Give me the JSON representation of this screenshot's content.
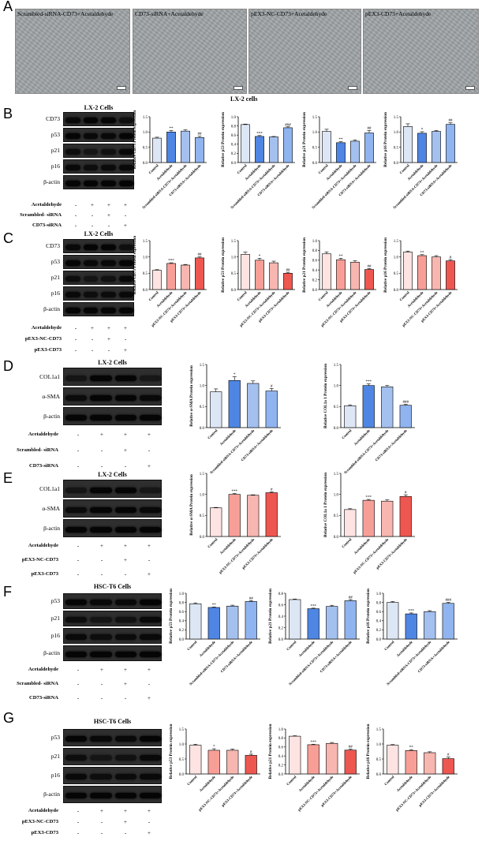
{
  "panel_A": {
    "letter": "A",
    "images": [
      "Scrambled-siRNA-CD73+Acetaldehyde",
      "CD73-siRNA+Acetaldehyde",
      "pEX3-NC-CD73+Acetaldehyde",
      "pEX3-CD73+Acetaldehyde"
    ],
    "footer": "LX-2 cells"
  },
  "panels": [
    {
      "letter": "B",
      "cells": "LX-2 Cells",
      "blot_rows": [
        "CD73",
        "p53",
        "p21",
        "p16",
        "β-actin"
      ],
      "treatments": [
        {
          "label": "Acetaldehyde",
          "signs": [
            "-",
            "+",
            "+",
            "+"
          ]
        },
        {
          "label": "Scrambled- siRNA",
          "signs": [
            "-",
            "-",
            "+",
            "-"
          ]
        },
        {
          "label": "CD73-siRNA",
          "signs": [
            "-",
            "-",
            "-",
            "+"
          ]
        }
      ]
    },
    {
      "letter": "C",
      "cells": "LX-2 Cells",
      "blot_rows": [
        "CD73",
        "p53",
        "p21",
        "p16",
        "β-actin"
      ],
      "treatments": [
        {
          "label": "Acetaldehyde",
          "signs": [
            "-",
            "+",
            "+",
            "+"
          ]
        },
        {
          "label": "pEX3-NC-CD73",
          "signs": [
            "-",
            "-",
            "+",
            "-"
          ]
        },
        {
          "label": "pEX3-CD73",
          "signs": [
            "-",
            "-",
            "-",
            "+"
          ]
        }
      ]
    },
    {
      "letter": "D",
      "cells": "LX-2 Cells",
      "blot_rows": [
        "COL1a1",
        "α-SMA",
        "β-actin"
      ],
      "treatments": [
        {
          "label": "Acetaldehyde",
          "signs": [
            "-",
            "+",
            "+",
            "+"
          ]
        },
        {
          "label": "Scrambled- siRNA",
          "signs": [
            "-",
            "-",
            "+",
            "-"
          ]
        },
        {
          "label": "CD73-siRNA",
          "signs": [
            "-",
            "-",
            "-",
            "+"
          ]
        }
      ]
    },
    {
      "letter": "E",
      "cells": "LX-2 Cells",
      "blot_rows": [
        "COL1a1",
        "α-SMA",
        "β-actin"
      ],
      "treatments": [
        {
          "label": "Acetaldehyde",
          "signs": [
            "-",
            "+",
            "+",
            "+"
          ]
        },
        {
          "label": "pEX3-NC-CD73",
          "signs": [
            "-",
            "-",
            "+",
            "-"
          ]
        },
        {
          "label": "pEX3-CD73",
          "signs": [
            "-",
            "-",
            "-",
            "+"
          ]
        }
      ]
    },
    {
      "letter": "F",
      "cells": "HSC-T6 Cells",
      "blot_rows": [
        "p53",
        "p21",
        "p16",
        "β-actin"
      ],
      "treatments": [
        {
          "label": "Acetaldehyde",
          "signs": [
            "-",
            "+",
            "+",
            "+"
          ]
        },
        {
          "label": "Scrambled- siRNA",
          "signs": [
            "-",
            "-",
            "+",
            "-"
          ]
        },
        {
          "label": "CD73-siRNA",
          "signs": [
            "-",
            "-",
            "-",
            "+"
          ]
        }
      ]
    },
    {
      "letter": "G",
      "cells": "HSC-T6 Cells",
      "blot_rows": [
        "p53",
        "p21",
        "p16",
        "β-actin"
      ],
      "treatments": [
        {
          "label": "Acetaldehyde",
          "signs": [
            "-",
            "+",
            "+",
            "+"
          ]
        },
        {
          "label": "pEX3-NC-CD73",
          "signs": [
            "-",
            "-",
            "+",
            "-"
          ]
        },
        {
          "label": "pEX3-CD73",
          "signs": [
            "-",
            "-",
            "-",
            "+"
          ]
        }
      ]
    }
  ],
  "colors": {
    "siRNA_bars": [
      "#dce6f4",
      "#4f86e3",
      "#a4c0ee",
      "#8fb4ef"
    ],
    "overexp_bars": [
      "#fde3e1",
      "#f79f97",
      "#f7b6b0",
      "#ee5750"
    ]
  },
  "chart_data": [
    {
      "id": "B1",
      "type": "bar",
      "ylabel": "Relative CD73 Protein expression",
      "categories": [
        "Control",
        "Acetaldehyde",
        "Scrambled-siRNA-CD73+Acetaldehyde",
        "CD73-siRNA+Acetaldehyde"
      ],
      "values": [
        0.8,
        1.0,
        1.03,
        0.82
      ],
      "errors": [
        0.03,
        0.05,
        0.04,
        0.04
      ],
      "sig": [
        "",
        "**",
        "",
        "##"
      ],
      "ylim": [
        0,
        1.5
      ],
      "yticks": [
        0,
        0.5,
        1.0,
        1.5
      ],
      "palette": "siRNA"
    },
    {
      "id": "B2",
      "type": "bar",
      "ylabel": "Relative p53 Protein expression",
      "categories": [
        "Control",
        "Acetaldehyde",
        "Scrambled-siRNA-CD73+Acetaldehyde",
        "CD73-siRNA+Acetaldehyde"
      ],
      "values": [
        0.83,
        0.57,
        0.56,
        0.76
      ],
      "errors": [
        0.01,
        0.02,
        0.01,
        0.02
      ],
      "sig": [
        "",
        "***",
        "",
        "###"
      ],
      "ylim": [
        0,
        1.0
      ],
      "yticks": [
        0,
        0.2,
        0.4,
        0.6,
        0.8,
        1.0
      ],
      "palette": "siRNA"
    },
    {
      "id": "B3",
      "type": "bar",
      "ylabel": "Relative p21 Protein expression",
      "categories": [
        "Control",
        "Acetaldehyde",
        "Scrambled-siRNA-CD73+Acetaldehyde",
        "CD73-siRNA+Acetaldehyde"
      ],
      "values": [
        1.02,
        0.65,
        0.7,
        0.97
      ],
      "errors": [
        0.07,
        0.03,
        0.04,
        0.08
      ],
      "sig": [
        "",
        "**",
        "",
        "##"
      ],
      "ylim": [
        0,
        1.5
      ],
      "yticks": [
        0,
        0.5,
        1.0,
        1.5
      ],
      "palette": "siRNA"
    },
    {
      "id": "B4",
      "type": "bar",
      "ylabel": "Relative p16 Protein expression",
      "categories": [
        "Control",
        "Acetaldehyde",
        "Scrambled-siRNA-CD73+Acetaldehyde",
        "CD73-siRNA+Acetaldehyde"
      ],
      "values": [
        1.18,
        0.96,
        1.02,
        1.25
      ],
      "errors": [
        0.09,
        0.05,
        0.03,
        0.05
      ],
      "sig": [
        "",
        "*",
        "",
        "##"
      ],
      "ylim": [
        0,
        1.5
      ],
      "yticks": [
        0,
        0.5,
        1.0,
        1.5
      ],
      "palette": "siRNA"
    },
    {
      "id": "C1",
      "type": "bar",
      "ylabel": "Relative CD73 Protein expression",
      "categories": [
        "Control",
        "Acetaldehyde",
        "pEX3-NC-CD73+Acetaldehyde",
        "pEX3-CD73+Acetaldehyde"
      ],
      "values": [
        0.59,
        0.8,
        0.75,
        0.97
      ],
      "errors": [
        0.02,
        0.02,
        0.02,
        0.03
      ],
      "sig": [
        "",
        "***",
        "",
        "##"
      ],
      "ylim": [
        0,
        1.5
      ],
      "yticks": [
        0,
        0.5,
        1.0,
        1.5
      ],
      "palette": "overexp"
    },
    {
      "id": "C2",
      "type": "bar",
      "ylabel": "Relative p53 Protein expression",
      "categories": [
        "Control",
        "Acetaldehyde",
        "pEX3-NC-CD73+Acetaldehyde",
        "pEX3-CD73+Acetaldehyde"
      ],
      "values": [
        1.08,
        0.9,
        0.82,
        0.5
      ],
      "errors": [
        0.07,
        0.06,
        0.05,
        0.03
      ],
      "sig": [
        "",
        "*",
        "",
        "##"
      ],
      "ylim": [
        0,
        1.5
      ],
      "yticks": [
        0,
        0.5,
        1.0,
        1.5
      ],
      "palette": "overexp"
    },
    {
      "id": "C3",
      "type": "bar",
      "ylabel": "Relative p21 Protein expression",
      "categories": [
        "Control",
        "Acetaldehyde",
        "pEX3-NC-CD73+Acetaldehyde",
        "pEX3-CD73+Acetaldehyde"
      ],
      "values": [
        0.73,
        0.61,
        0.56,
        0.41
      ],
      "errors": [
        0.04,
        0.03,
        0.03,
        0.02
      ],
      "sig": [
        "",
        "**",
        "",
        "##"
      ],
      "ylim": [
        0,
        1.0
      ],
      "yticks": [
        0,
        0.2,
        0.4,
        0.6,
        0.8,
        1.0
      ],
      "palette": "overexp"
    },
    {
      "id": "C4",
      "type": "bar",
      "ylabel": "Relative p16 Protein expression",
      "categories": [
        "Control",
        "Acetaldehyde",
        "pEX3-NC-CD73+Acetaldehyde",
        "pEX3-CD73+Acetaldehyde"
      ],
      "values": [
        1.15,
        1.04,
        1.0,
        0.88
      ],
      "errors": [
        0.03,
        0.03,
        0.04,
        0.04
      ],
      "sig": [
        "",
        "**",
        "",
        "#"
      ],
      "ylim": [
        0,
        1.5
      ],
      "yticks": [
        0,
        0.5,
        1.0,
        1.5
      ],
      "palette": "overexp"
    },
    {
      "id": "D1",
      "type": "bar",
      "ylabel": "Relative α-SMA Protein expression",
      "categories": [
        "Control",
        "Acetaldehyde",
        "Scrambled-siRNA-CD73+Acetaldehyde",
        "CD73-siRNA+Acetaldehyde"
      ],
      "values": [
        0.85,
        1.12,
        1.05,
        0.87
      ],
      "errors": [
        0.07,
        0.09,
        0.06,
        0.06
      ],
      "sig": [
        "",
        "*",
        "",
        "#"
      ],
      "ylim": [
        0,
        1.5
      ],
      "yticks": [
        0,
        0.5,
        1.0,
        1.5
      ],
      "palette": "siRNA"
    },
    {
      "id": "D2",
      "type": "bar",
      "ylabel": "Relative COL1a 1 Protein expression",
      "categories": [
        "Control",
        "Acetaldehyde",
        "Scrambled-siRNA-CD73+Acetaldehyde",
        "CD73-siRNA+Acetaldehyde"
      ],
      "values": [
        0.52,
        1.0,
        0.97,
        0.53
      ],
      "errors": [
        0.02,
        0.04,
        0.03,
        0.02
      ],
      "sig": [
        "",
        "***",
        "",
        "###"
      ],
      "ylim": [
        0,
        1.5
      ],
      "yticks": [
        0,
        0.5,
        1.0,
        1.5
      ],
      "palette": "siRNA"
    },
    {
      "id": "E1",
      "type": "bar",
      "ylabel": "Relative α-SMA Protein expression",
      "categories": [
        "Control",
        "Acetaldehyde",
        "pEX3-NC-CD73+Acetaldehyde",
        "pEX3-CD73+Acetaldehyde"
      ],
      "values": [
        0.68,
        1.0,
        0.98,
        1.04
      ],
      "errors": [
        0.01,
        0.02,
        0.01,
        0.02
      ],
      "sig": [
        "",
        "***",
        "",
        "#"
      ],
      "ylim": [
        0,
        1.5
      ],
      "yticks": [
        0,
        0.5,
        1.0,
        1.5
      ],
      "palette": "overexp"
    },
    {
      "id": "E2",
      "type": "bar",
      "ylabel": "Relative COL1a 1 Protein expression",
      "categories": [
        "Control",
        "Acetaldehyde",
        "pEX3-NC-CD73+Acetaldehyde",
        "pEX3-CD73+Acetaldehyde"
      ],
      "values": [
        0.64,
        0.86,
        0.84,
        0.95
      ],
      "errors": [
        0.02,
        0.02,
        0.03,
        0.04
      ],
      "sig": [
        "",
        "***",
        "",
        "#"
      ],
      "ylim": [
        0,
        1.5
      ],
      "yticks": [
        0,
        0.5,
        1.0,
        1.5
      ],
      "palette": "overexp"
    },
    {
      "id": "F1",
      "type": "bar",
      "ylabel": "Relative p53 Protein expression",
      "categories": [
        "Control",
        "Acetaldehyde",
        "Scrambled-siRNA-CD73+Acetaldehyde",
        "CD73-siRNA+Acetaldehyde"
      ],
      "values": [
        0.77,
        0.69,
        0.72,
        0.82
      ],
      "errors": [
        0.02,
        0.01,
        0.02,
        0.02
      ],
      "sig": [
        "",
        "**",
        "",
        "##"
      ],
      "ylim": [
        0,
        1.0
      ],
      "yticks": [
        0,
        0.2,
        0.4,
        0.6,
        0.8,
        1.0
      ],
      "palette": "siRNA"
    },
    {
      "id": "F2",
      "type": "bar",
      "ylabel": "Relative p21 Protein expression",
      "categories": [
        "Control",
        "Acetaldehyde",
        "Scrambled-siRNA-CD73+Acetaldehyde",
        "CD73-siRNA+Acetaldehyde"
      ],
      "values": [
        0.69,
        0.53,
        0.57,
        0.67
      ],
      "errors": [
        0.01,
        0.01,
        0.02,
        0.02
      ],
      "sig": [
        "",
        "***",
        "",
        "##"
      ],
      "ylim": [
        0,
        0.8
      ],
      "yticks": [
        0,
        0.2,
        0.4,
        0.6,
        0.8
      ],
      "palette": "siRNA"
    },
    {
      "id": "F3",
      "type": "bar",
      "ylabel": "Relative p16 Protein expression",
      "categories": [
        "Control",
        "Acetaldehyde",
        "Scrambled-siRNA-CD73+Acetaldehyde",
        "CD73-siRNA+Acetaldehyde"
      ],
      "values": [
        0.8,
        0.55,
        0.6,
        0.78
      ],
      "errors": [
        0.02,
        0.02,
        0.02,
        0.02
      ],
      "sig": [
        "",
        "***",
        "",
        "###"
      ],
      "ylim": [
        0,
        1.0
      ],
      "yticks": [
        0,
        0.2,
        0.4,
        0.6,
        0.8,
        1.0
      ],
      "palette": "siRNA"
    },
    {
      "id": "G1",
      "type": "bar",
      "ylabel": "Relative p53 Protein expression",
      "categories": [
        "Control",
        "Acetaldehyde",
        "pEX3-NC-CD73+Acetaldehyde",
        "pEX3-CD73+Acetaldehyde"
      ],
      "values": [
        0.96,
        0.79,
        0.79,
        0.62
      ],
      "errors": [
        0.03,
        0.05,
        0.04,
        0.04
      ],
      "sig": [
        "",
        "*",
        "",
        "#"
      ],
      "ylim": [
        0,
        1.5
      ],
      "yticks": [
        0,
        0.5,
        1.0,
        1.5
      ],
      "palette": "overexp"
    },
    {
      "id": "G2",
      "type": "bar",
      "ylabel": "Relative p21 Protein expression",
      "categories": [
        "Control",
        "Acetaldehyde",
        "pEX3-NC-CD73+Acetaldehyde",
        "pEX3-CD73+Acetaldehyde"
      ],
      "values": [
        0.84,
        0.65,
        0.68,
        0.53
      ],
      "errors": [
        0.01,
        0.01,
        0.02,
        0.02
      ],
      "sig": [
        "",
        "***",
        "",
        "##"
      ],
      "ylim": [
        0,
        1.0
      ],
      "yticks": [
        0,
        0.2,
        0.4,
        0.6,
        0.8,
        1.0
      ],
      "palette": "overexp"
    },
    {
      "id": "G3",
      "type": "bar",
      "ylabel": "Relative p16 Protein expression",
      "categories": [
        "Control",
        "Acetaldehyde",
        "pEX3-NC-CD73+Acetaldehyde",
        "pEX3-CD73+Acetaldehyde"
      ],
      "values": [
        0.96,
        0.78,
        0.71,
        0.51
      ],
      "errors": [
        0.02,
        0.03,
        0.03,
        0.05
      ],
      "sig": [
        "",
        "**",
        "",
        "#"
      ],
      "ylim": [
        0,
        1.5
      ],
      "yticks": [
        0,
        0.5,
        1.0,
        1.5
      ],
      "palette": "overexp"
    }
  ]
}
